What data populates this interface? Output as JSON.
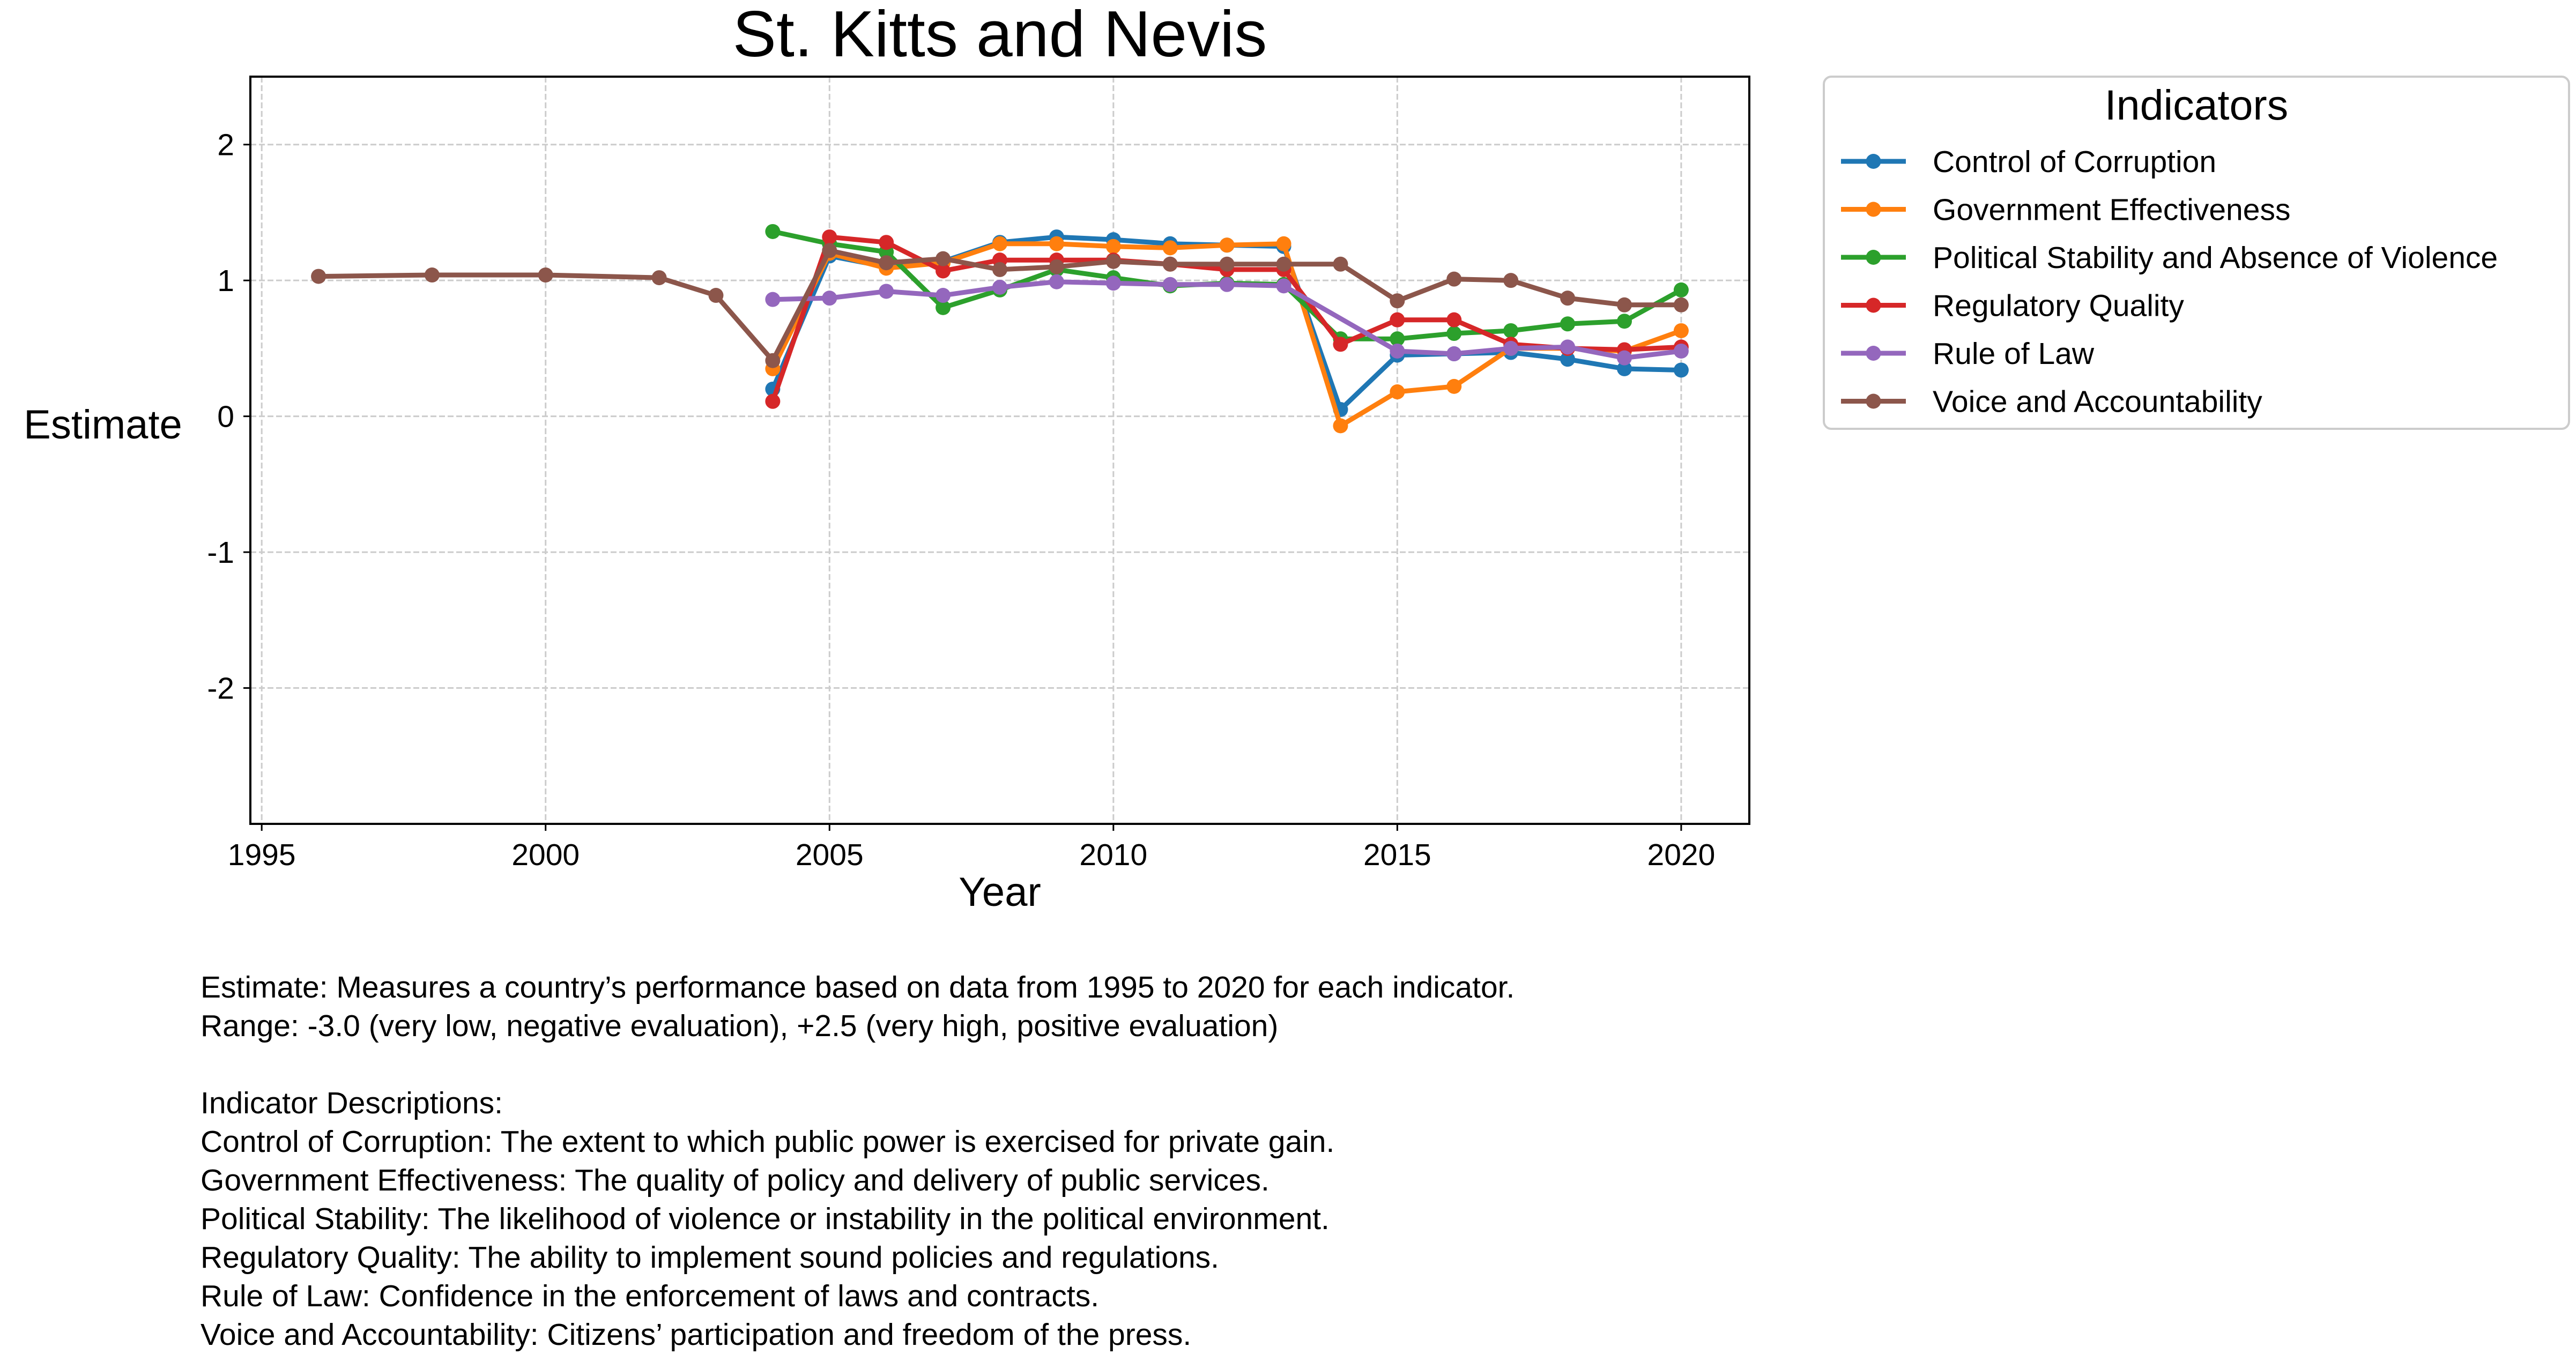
{
  "chart_data": {
    "type": "line",
    "title": "St. Kitts and Nevis",
    "xlabel": "Year",
    "ylabel": "Estimate",
    "xlim": [
      1994.8,
      2021.2
    ],
    "ylim": [
      -3.0,
      2.5
    ],
    "xticks": [
      1995,
      2000,
      2005,
      2010,
      2015,
      2020
    ],
    "yticks": [
      2,
      1,
      0,
      -1,
      -2
    ],
    "grid": true,
    "legend_title": "Indicators",
    "legend_placement": "outside-top-right",
    "series": [
      {
        "name": "Control of Corruption",
        "color": "#1f77b4",
        "points": [
          [
            2004,
            0.2
          ],
          [
            2005,
            1.18
          ],
          [
            2006,
            1.1
          ],
          [
            2007,
            1.14
          ],
          [
            2008,
            1.28
          ],
          [
            2009,
            1.32
          ],
          [
            2010,
            1.3
          ],
          [
            2011,
            1.27
          ],
          [
            2012,
            1.26
          ],
          [
            2013,
            1.25
          ],
          [
            2014,
            0.05
          ],
          [
            2015,
            0.45
          ],
          [
            2016,
            0.46
          ],
          [
            2017,
            0.47
          ],
          [
            2018,
            0.42
          ],
          [
            2019,
            0.35
          ],
          [
            2020,
            0.34
          ]
        ]
      },
      {
        "name": "Government Effectiveness",
        "color": "#ff7f0e",
        "points": [
          [
            2004,
            0.35
          ],
          [
            2005,
            1.2
          ],
          [
            2006,
            1.09
          ],
          [
            2007,
            1.13
          ],
          [
            2008,
            1.27
          ],
          [
            2009,
            1.27
          ],
          [
            2010,
            1.25
          ],
          [
            2011,
            1.24
          ],
          [
            2012,
            1.26
          ],
          [
            2013,
            1.27
          ],
          [
            2014,
            -0.07
          ],
          [
            2015,
            0.18
          ],
          [
            2016,
            0.22
          ],
          [
            2017,
            0.5
          ],
          [
            2018,
            0.5
          ],
          [
            2019,
            0.48
          ],
          [
            2020,
            0.63
          ]
        ]
      },
      {
        "name": "Political Stability and Absence of Violence",
        "color": "#2ca02c",
        "points": [
          [
            2004,
            1.36
          ],
          [
            2005,
            1.27
          ],
          [
            2006,
            1.21
          ],
          [
            2007,
            0.8
          ],
          [
            2008,
            0.93
          ],
          [
            2009,
            1.08
          ],
          [
            2010,
            1.02
          ],
          [
            2011,
            0.96
          ],
          [
            2012,
            0.98
          ],
          [
            2013,
            0.97
          ],
          [
            2014,
            0.57
          ],
          [
            2015,
            0.57
          ],
          [
            2016,
            0.61
          ],
          [
            2017,
            0.63
          ],
          [
            2018,
            0.68
          ],
          [
            2019,
            0.7
          ],
          [
            2020,
            0.93
          ]
        ]
      },
      {
        "name": "Regulatory Quality",
        "color": "#d62728",
        "points": [
          [
            2004,
            0.11
          ],
          [
            2005,
            1.32
          ],
          [
            2006,
            1.28
          ],
          [
            2007,
            1.07
          ],
          [
            2008,
            1.15
          ],
          [
            2009,
            1.15
          ],
          [
            2010,
            1.15
          ],
          [
            2011,
            1.12
          ],
          [
            2012,
            1.08
          ],
          [
            2013,
            1.08
          ],
          [
            2014,
            0.53
          ],
          [
            2015,
            0.71
          ],
          [
            2016,
            0.71
          ],
          [
            2017,
            0.53
          ],
          [
            2018,
            0.5
          ],
          [
            2019,
            0.49
          ],
          [
            2020,
            0.51
          ]
        ]
      },
      {
        "name": "Rule of Law",
        "color": "#9467bd",
        "points": [
          [
            2004,
            0.86
          ],
          [
            2005,
            0.87
          ],
          [
            2006,
            0.92
          ],
          [
            2007,
            0.89
          ],
          [
            2008,
            0.95
          ],
          [
            2009,
            0.99
          ],
          [
            2010,
            0.98
          ],
          [
            2011,
            0.97
          ],
          [
            2012,
            0.97
          ],
          [
            2013,
            0.96
          ],
          [
            2015,
            0.48
          ],
          [
            2016,
            0.46
          ],
          [
            2017,
            0.5
          ],
          [
            2018,
            0.51
          ],
          [
            2019,
            0.43
          ],
          [
            2020,
            0.48
          ]
        ]
      },
      {
        "name": "Voice and Accountability",
        "color": "#8c564b",
        "points": [
          [
            1996,
            1.03
          ],
          [
            1998,
            1.04
          ],
          [
            2000,
            1.04
          ],
          [
            2002,
            1.02
          ],
          [
            2003,
            0.89
          ],
          [
            2004,
            0.41
          ],
          [
            2005,
            1.22
          ],
          [
            2006,
            1.13
          ],
          [
            2007,
            1.16
          ],
          [
            2008,
            1.08
          ],
          [
            2009,
            1.1
          ],
          [
            2010,
            1.14
          ],
          [
            2011,
            1.12
          ],
          [
            2012,
            1.12
          ],
          [
            2013,
            1.12
          ],
          [
            2014,
            1.12
          ],
          [
            2015,
            0.85
          ],
          [
            2016,
            1.01
          ],
          [
            2017,
            1.0
          ],
          [
            2018,
            0.87
          ],
          [
            2019,
            0.82
          ],
          [
            2020,
            0.82
          ]
        ]
      }
    ]
  },
  "notes": {
    "line1": "Estimate: Measures a country’s performance based on data from 1995 to 2020 for each indicator.",
    "line2": "Range: -3.0 (very low, negative evaluation), +2.5 (very high, positive evaluation)",
    "line3": "Indicator Descriptions:",
    "line4": "Control of Corruption: The extent to which public power is exercised for private gain.",
    "line5": "Government Effectiveness: The quality of policy and delivery of public services.",
    "line6": "Political Stability: The likelihood of violence or instability in the political environment.",
    "line7": "Regulatory Quality: The ability to implement sound policies and regulations.",
    "line8": "Rule of Law: Confidence in the enforcement of laws and contracts.",
    "line9": "Voice and Accountability: Citizens’ participation and freedom of the press."
  }
}
